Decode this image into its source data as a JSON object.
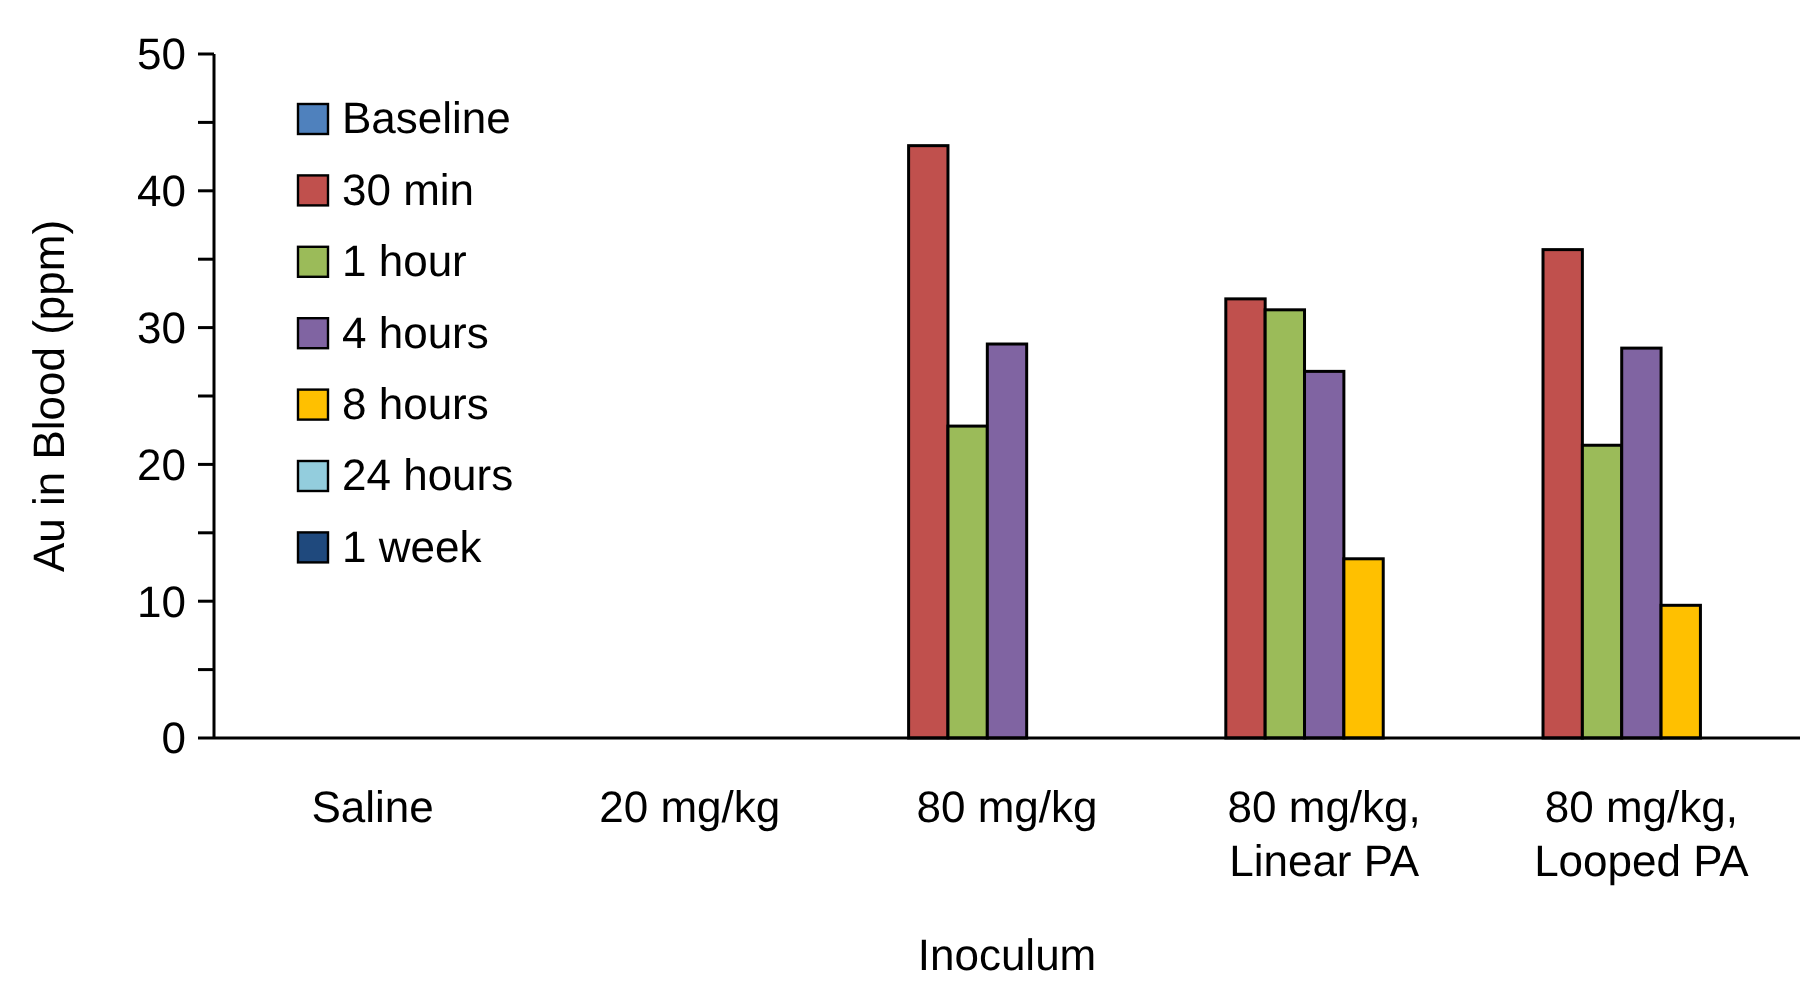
{
  "chart_data": {
    "type": "bar",
    "xlabel": "Inoculum",
    "ylabel": "Au in Blood (ppm)",
    "categories": [
      "Saline",
      "20 mg/kg",
      "80 mg/kg",
      "80 mg/kg, Linear PA",
      "80 mg/kg, Looped PA"
    ],
    "series": [
      {
        "name": "Baseline",
        "color": "#4f81bd",
        "values": [
          null,
          null,
          null,
          null,
          null
        ]
      },
      {
        "name": "30 min",
        "color": "#c0504d",
        "values": [
          null,
          null,
          43.3,
          32.1,
          35.7
        ]
      },
      {
        "name": "1 hour",
        "color": "#9bbb59",
        "values": [
          null,
          null,
          22.8,
          31.3,
          21.4
        ]
      },
      {
        "name": "4 hours",
        "color": "#8064a2",
        "values": [
          null,
          null,
          28.8,
          26.8,
          28.5
        ]
      },
      {
        "name": "8 hours",
        "color": "#ffc000",
        "values": [
          null,
          null,
          null,
          13.1,
          9.7
        ]
      },
      {
        "name": "24 hours",
        "color": "#93cddd",
        "values": [
          null,
          null,
          null,
          null,
          null
        ]
      },
      {
        "name": "1 week",
        "color": "#1f497d",
        "values": [
          null,
          null,
          null,
          null,
          null
        ]
      }
    ],
    "ylim": [
      0,
      50
    ],
    "yticks": [
      0,
      {
        "value": 5,
        "label": null
      },
      10,
      {
        "value": 15,
        "label": null
      },
      20,
      {
        "value": 25,
        "label": null
      },
      30,
      {
        "value": 35,
        "label": null
      },
      40,
      {
        "value": 45,
        "label": null
      },
      50
    ],
    "grid": false,
    "legend": "top left"
  }
}
